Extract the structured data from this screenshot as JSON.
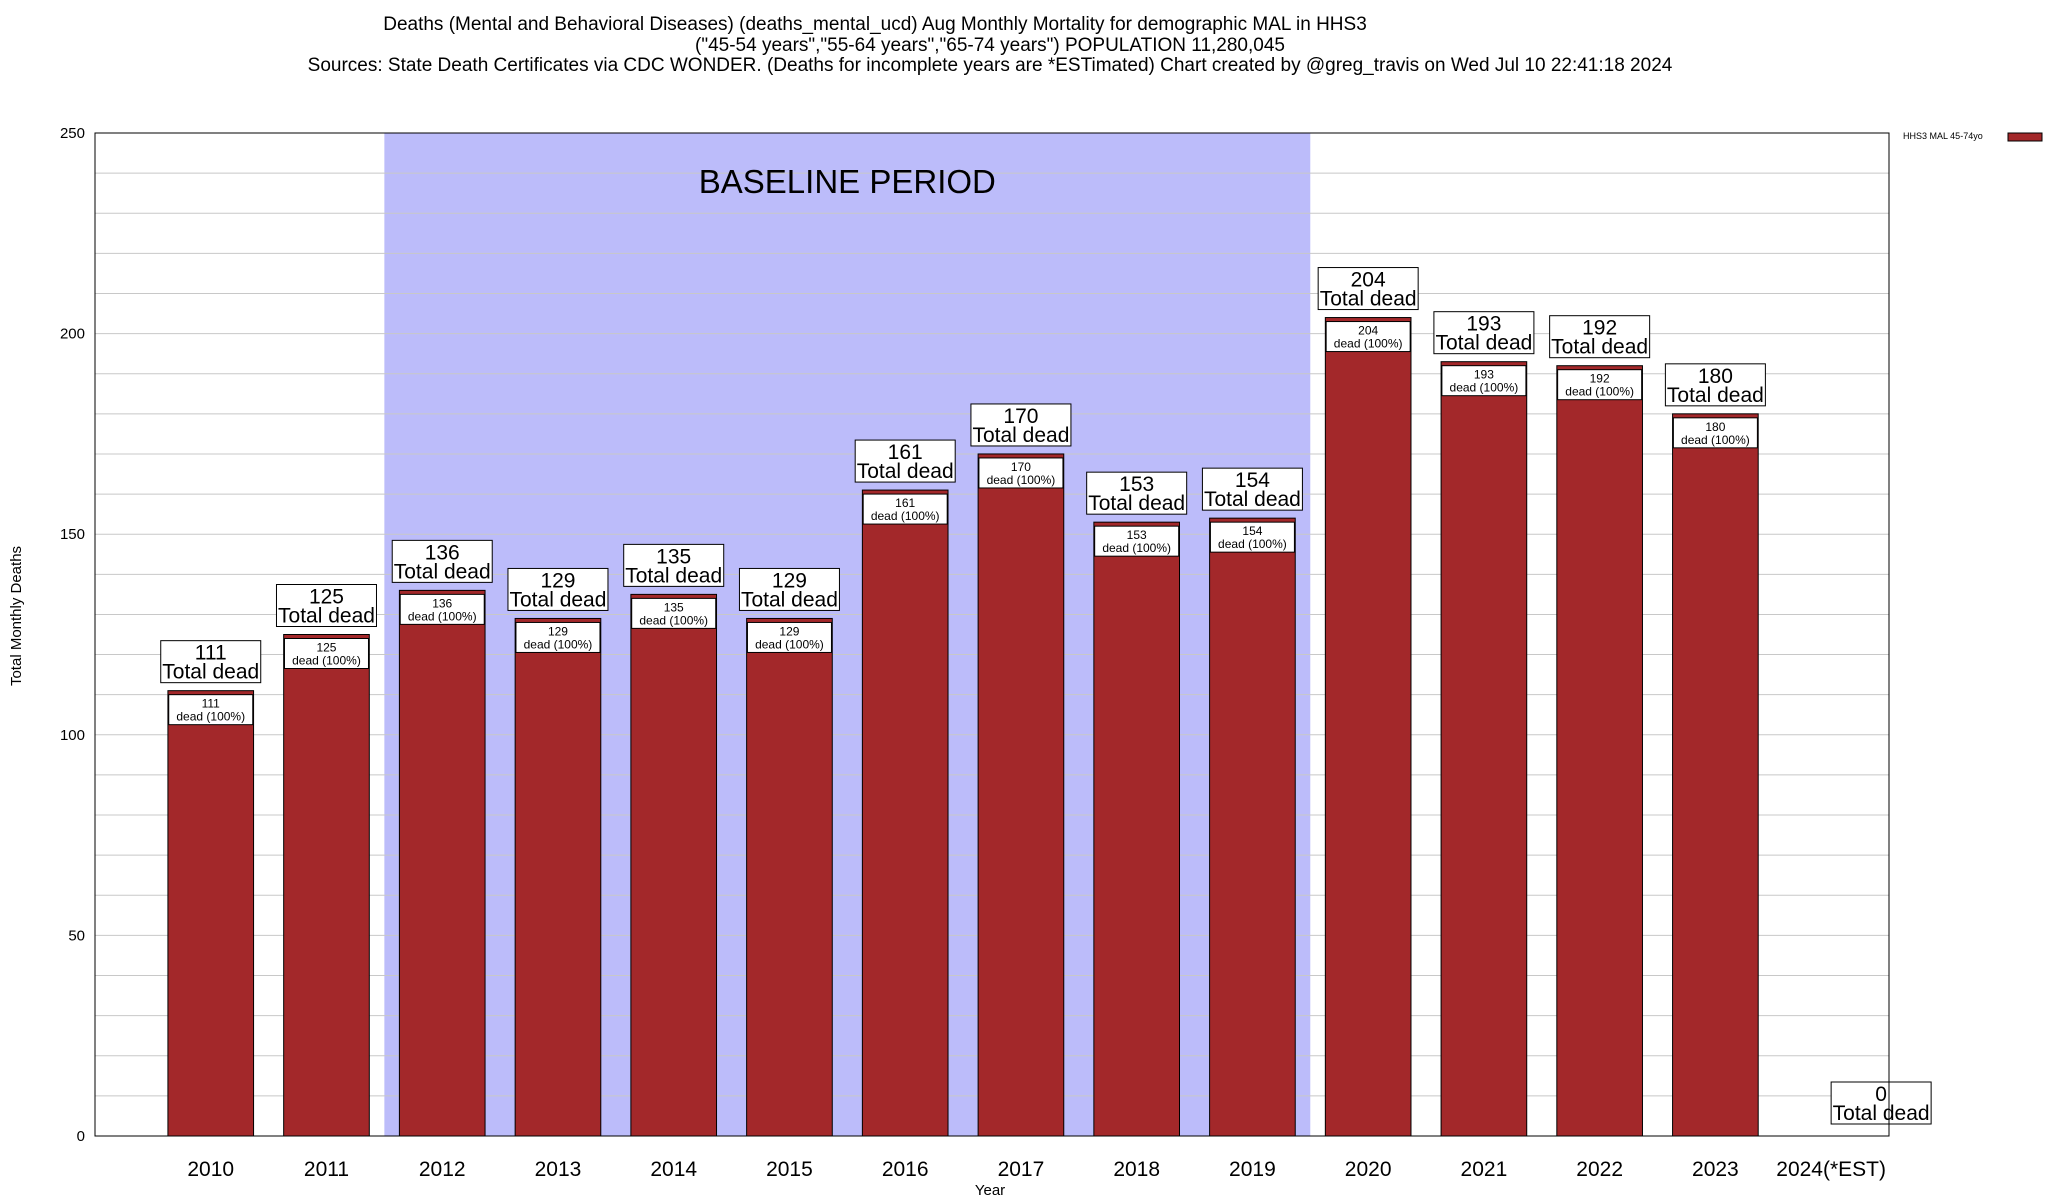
{
  "title_lines": [
    "Deaths (Mental and Behavioral Diseases) (deaths_mental_ucd) Aug Monthly Mortality for demographic MAL in HHS3",
    "(\"45-54 years\",\"55-64 years\",\"65-74 years\") POPULATION 11,280,045",
    "Sources: State Death Certificates via CDC WONDER. (Deaths for incomplete years are *ESTimated)                Chart created by @greg_travis on Wed Jul 10 22:41:18 2024"
  ],
  "baseline_label": "BASELINE PERIOD",
  "legend_label": "HHS3 MAL 45-74yo",
  "chart_data": {
    "type": "bar",
    "title": "Deaths (Mental and Behavioral Diseases) (deaths_mental_ucd) Aug Monthly Mortality for demographic MAL in HHS3",
    "xlabel": "Year",
    "ylabel": "Total Monthly Deaths",
    "ylim": [
      0,
      250
    ],
    "yticks": [
      0,
      50,
      100,
      150,
      200,
      250
    ],
    "grid": true,
    "legend_position": "top-right",
    "baseline_period": [
      "2012",
      "2019"
    ],
    "categories": [
      "2010",
      "2011",
      "2012",
      "2013",
      "2014",
      "2015",
      "2016",
      "2017",
      "2018",
      "2019",
      "2020",
      "2021",
      "2022",
      "2023",
      "2024(*EST)"
    ],
    "series": [
      {
        "name": "HHS3 MAL 45-74yo",
        "color": "#a3282a",
        "values": [
          111,
          125,
          136,
          129,
          135,
          129,
          161,
          170,
          153,
          154,
          204,
          193,
          192,
          180,
          0
        ]
      }
    ],
    "top_label_suffix": "Total dead",
    "inner_label_suffix": "dead (100%)"
  }
}
